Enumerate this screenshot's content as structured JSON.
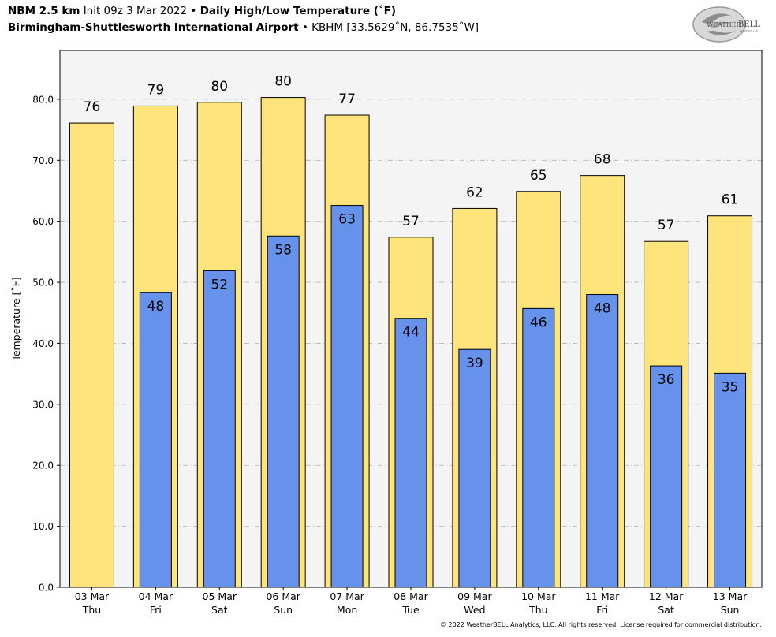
{
  "header": {
    "model": "NBM 2.5 km",
    "init": "Init 09z 3 Mar 2022",
    "sep": "•",
    "product": "Daily High/Low Temperature (˚F)",
    "station_name": "Birmingham-Shuttlesworth International Airport",
    "station_info": "KBHM [33.5629˚N, 86.7535˚W]"
  },
  "logo": {
    "text_a": "WEATHER",
    "text_b": "BELL",
    "sub": "Analytics LLC"
  },
  "copyright": "© 2022 WeatherBELL Analytics, LLC. All rights reserved. License required for commercial distribution.",
  "chart_data": {
    "type": "bar",
    "ylabel": "Temperature [˚F]",
    "xlabel": "",
    "ylim": [
      0,
      88
    ],
    "yticks": [
      0,
      10,
      20,
      30,
      40,
      50,
      60,
      70,
      80
    ],
    "ytick_labels": [
      "0.0",
      "10.0",
      "20.0",
      "30.0",
      "40.0",
      "50.0",
      "60.0",
      "70.0",
      "80.0"
    ],
    "grid": true,
    "categories": [
      "03 Mar",
      "04 Mar",
      "05 Mar",
      "06 Mar",
      "07 Mar",
      "08 Mar",
      "09 Mar",
      "10 Mar",
      "11 Mar",
      "12 Mar",
      "13 Mar"
    ],
    "weekdays": [
      "Thu",
      "Fri",
      "Sat",
      "Sun",
      "Mon",
      "Tue",
      "Wed",
      "Thu",
      "Fri",
      "Sat",
      "Sun"
    ],
    "series": [
      {
        "values": [
          76.1,
          78.9,
          79.5,
          80.3,
          77.4,
          57.4,
          62.1,
          64.9,
          67.5,
          56.7,
          60.9
        ],
        "labels": [
          "76",
          "79",
          "80",
          "80",
          "77",
          "57",
          "62",
          "65",
          "68",
          "57",
          "61"
        ],
        "color": "#ffe47c"
      },
      {
        "values": [
          null,
          48.3,
          51.9,
          57.6,
          62.6,
          44.1,
          39.0,
          45.7,
          48.0,
          36.3,
          35.1
        ],
        "labels": [
          "",
          "48",
          "52",
          "58",
          "63",
          "44",
          "39",
          "46",
          "48",
          "36",
          "35"
        ],
        "color": "#6792ec"
      }
    ],
    "colors": {
      "plot_bg": "#f4f4f4",
      "grid": "#b4b4b4"
    }
  }
}
